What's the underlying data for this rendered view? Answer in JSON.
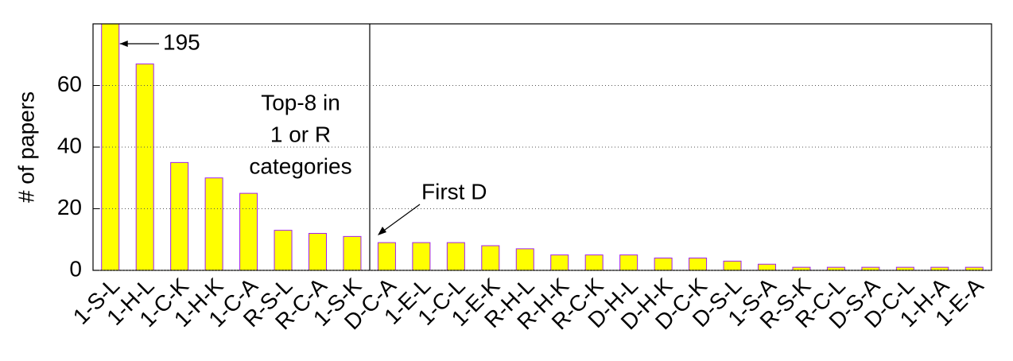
{
  "chart_data": {
    "type": "bar",
    "y_label": "# of papers",
    "categories": [
      "1-S-L",
      "1-H-L",
      "1-C-K",
      "1-H-K",
      "1-C-A",
      "R-S-L",
      "R-C-A",
      "1-S-K",
      "D-C-A",
      "1-E-L",
      "1-C-L",
      "1-E-K",
      "R-H-L",
      "R-H-K",
      "R-C-K",
      "D-H-L",
      "D-H-K",
      "D-C-K",
      "D-S-L",
      "1-S-A",
      "R-S-K",
      "R-C-L",
      "D-S-A",
      "D-C-L",
      "1-H-A",
      "1-E-A"
    ],
    "values": [
      195,
      67,
      35,
      30,
      25,
      13,
      12,
      11,
      9,
      9,
      9,
      8,
      7,
      5,
      5,
      5,
      4,
      4,
      3,
      2,
      1,
      1,
      1,
      1,
      1,
      1
    ],
    "value_labels": [
      "195",
      null,
      null,
      null,
      null,
      null,
      null,
      null,
      null,
      null,
      null,
      null,
      null,
      null,
      null,
      null,
      null,
      null,
      null,
      null,
      null,
      null,
      null,
      null,
      null,
      null
    ],
    "color": "#ffff00",
    "edge_color": "#a020f0",
    "ylim": [
      0,
      80
    ],
    "yticks": [
      0,
      20,
      40,
      60
    ],
    "grid": true,
    "annotations": [
      {
        "lines": [
          "Top-8 in",
          "1 or R",
          "categories"
        ]
      },
      {
        "lines": [
          "First D"
        ]
      }
    ]
  }
}
